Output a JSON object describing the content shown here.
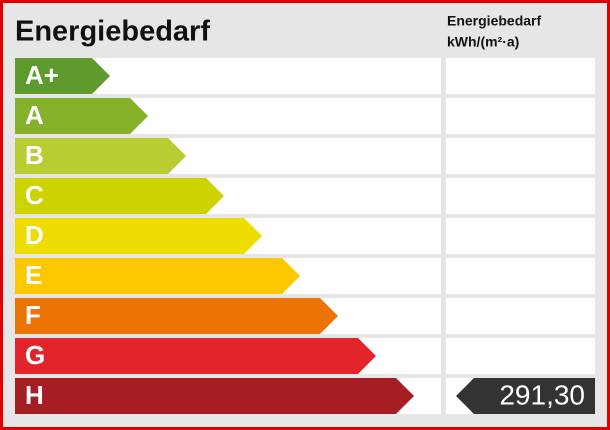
{
  "title": "Energiebedarf",
  "column_header": [
    "Energiebedarf",
    "kWh/(m²·a)"
  ],
  "classes": [
    {
      "label": "A+",
      "color": "#5f9a2e"
    },
    {
      "label": "A",
      "color": "#86b22b"
    },
    {
      "label": "B",
      "color": "#b9cd33"
    },
    {
      "label": "C",
      "color": "#cdd300"
    },
    {
      "label": "D",
      "color": "#eedd00"
    },
    {
      "label": "E",
      "color": "#fdc800"
    },
    {
      "label": "F",
      "color": "#ec7404"
    },
    {
      "label": "G",
      "color": "#e2252a"
    },
    {
      "label": "H",
      "color": "#a61d23",
      "value": "291,30"
    }
  ]
}
